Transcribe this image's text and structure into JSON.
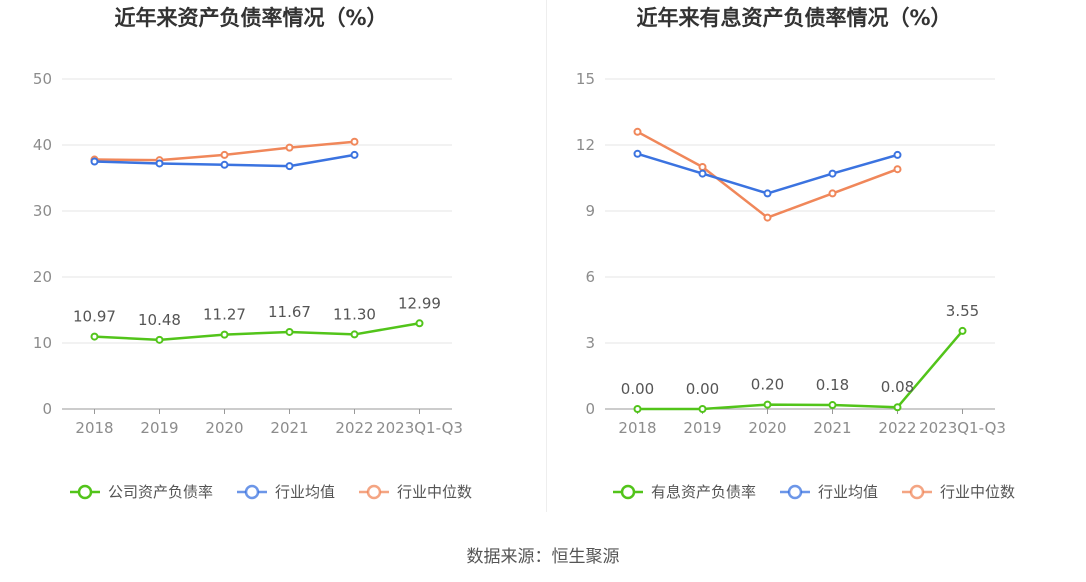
{
  "colors": {
    "company": "#52c41a",
    "avg": "#3b73e0",
    "median": "#f0875a",
    "grid": "#e6e6e6",
    "axis": "#999999",
    "tick": "#8c8c8c",
    "label": "#555555",
    "title": "#333333"
  },
  "chart_data": [
    {
      "type": "line",
      "title": "近年来资产负债率情况（%）",
      "categories": [
        "2018",
        "2019",
        "2020",
        "2021",
        "2022",
        "2023Q1-Q3"
      ],
      "ylim": [
        0,
        50
      ],
      "yticks": [
        0,
        10,
        20,
        30,
        40,
        50
      ],
      "grid": true,
      "legend_position": "bottom",
      "series": [
        {
          "name": "公司资产负债率",
          "color_key": "company",
          "values": [
            10.97,
            10.48,
            11.27,
            11.67,
            11.3,
            12.99
          ],
          "data_labels": [
            "10.97",
            "10.48",
            "11.27",
            "11.67",
            "11.30",
            "12.99"
          ]
        },
        {
          "name": "行业均值",
          "color_key": "avg",
          "values": [
            37.5,
            37.2,
            37.0,
            36.8,
            38.5,
            null
          ]
        },
        {
          "name": "行业中位数",
          "color_key": "median",
          "values": [
            37.8,
            37.7,
            38.5,
            39.6,
            40.5,
            null
          ]
        }
      ]
    },
    {
      "type": "line",
      "title": "近年来有息资产负债率情况（%）",
      "categories": [
        "2018",
        "2019",
        "2020",
        "2021",
        "2022",
        "2023Q1-Q3"
      ],
      "ylim": [
        0,
        15
      ],
      "yticks": [
        0,
        3,
        6,
        9,
        12,
        15
      ],
      "grid": true,
      "legend_position": "bottom",
      "series": [
        {
          "name": "有息资产负债率",
          "color_key": "company",
          "values": [
            0.0,
            0.0,
            0.2,
            0.18,
            0.08,
            3.55
          ],
          "data_labels": [
            "0.00",
            "0.00",
            "0.20",
            "0.18",
            "0.08",
            "3.55"
          ]
        },
        {
          "name": "行业均值",
          "color_key": "avg",
          "values": [
            11.6,
            10.7,
            9.8,
            10.7,
            11.55,
            null
          ]
        },
        {
          "name": "行业中位数",
          "color_key": "median",
          "values": [
            12.6,
            11.0,
            8.7,
            9.8,
            10.9,
            null
          ]
        }
      ]
    }
  ],
  "source_text": "数据来源：恒生聚源"
}
